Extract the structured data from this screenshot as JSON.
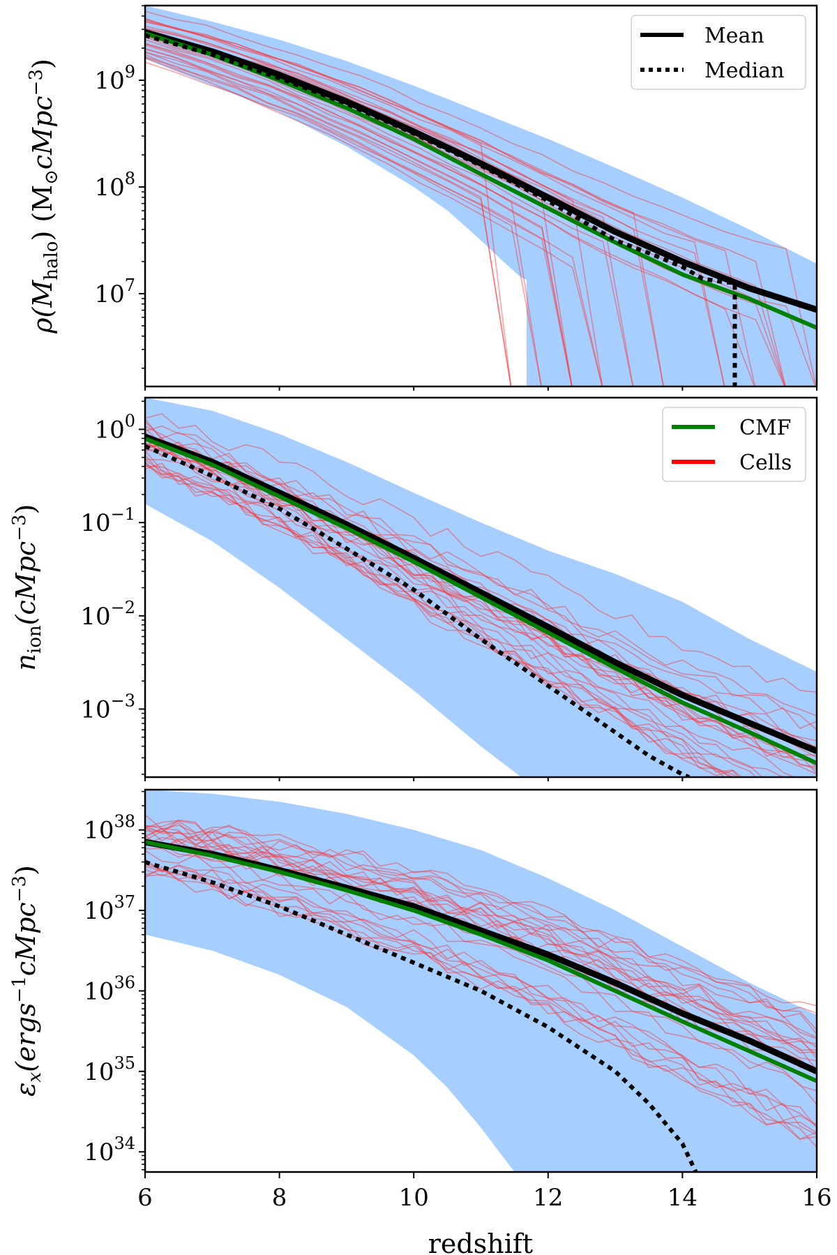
{
  "chart_data": [
    {
      "type": "line",
      "panel": "top",
      "ylabel_main": "ρ(M",
      "ylabel_sub": "halo",
      "ylabel_tail": ") (M",
      "ylabel_sun": "⊙",
      "ylabel_units": "cMpc",
      "ylabel_exp": "−3",
      "ylabel_close": ")",
      "yscale": "log",
      "xlim": [
        6,
        16
      ],
      "ylim_log10": [
        6.13,
        9.7
      ],
      "yticks": [
        {
          "base": "10",
          "exp": "9",
          "log": 9
        },
        {
          "base": "10",
          "exp": "8",
          "log": 8
        },
        {
          "base": "10",
          "exp": "7",
          "log": 7
        }
      ],
      "legend": {
        "position": "top-right",
        "entries": [
          {
            "label": "Mean",
            "color": "#000000",
            "style": "solid"
          },
          {
            "label": "Median",
            "color": "#000000",
            "style": "dotted"
          }
        ]
      },
      "band_color": "#a6ceff",
      "band_lower": {
        "x": [
          6,
          7,
          8,
          9,
          10,
          10.5,
          11,
          11.3,
          11.6,
          11.68
        ],
        "y": [
          9.2,
          8.95,
          8.7,
          8.38,
          8.0,
          7.78,
          7.5,
          7.32,
          7.15,
          7.13
        ]
      },
      "band_upper": {
        "x": [
          6,
          7,
          8,
          9,
          10,
          11,
          12,
          13,
          14,
          15,
          16
        ],
        "y": [
          9.7,
          9.55,
          9.38,
          9.18,
          8.95,
          8.7,
          8.45,
          8.18,
          7.9,
          7.6,
          7.28
        ]
      },
      "band_cut_x": 11.68,
      "series": [
        {
          "name": "Mean",
          "color": "#000000",
          "style": "solid",
          "x": [
            6,
            7,
            8,
            9,
            10,
            11,
            12,
            13,
            14,
            15,
            16
          ],
          "y": [
            9.45,
            9.27,
            9.05,
            8.8,
            8.52,
            8.22,
            7.9,
            7.58,
            7.3,
            7.05,
            6.85
          ]
        },
        {
          "name": "Median",
          "color": "#000000",
          "style": "dotted",
          "x": [
            6,
            7,
            8,
            9,
            10,
            11,
            12,
            13,
            13.5,
            14,
            14.3,
            14.6,
            14.78,
            14.78
          ],
          "y": [
            9.42,
            9.24,
            9.02,
            8.78,
            8.5,
            8.2,
            7.87,
            7.5,
            7.38,
            7.25,
            7.14,
            7.11,
            7.1,
            6.13
          ]
        },
        {
          "name": "CMF",
          "color": "#008000",
          "style": "solid",
          "x": [
            6,
            7,
            8,
            9,
            10,
            11,
            12,
            13,
            14,
            15,
            16
          ],
          "y": [
            9.44,
            9.24,
            9.0,
            8.74,
            8.45,
            8.12,
            7.8,
            7.48,
            7.18,
            6.95,
            6.68
          ]
        }
      ]
    },
    {
      "type": "line",
      "panel": "middle",
      "ylabel_main": "n",
      "ylabel_sub": "ion",
      "ylabel_units": "(cMpc",
      "ylabel_exp": "−3",
      "ylabel_close": ")",
      "yscale": "log",
      "xlim": [
        6,
        16
      ],
      "ylim_log10": [
        -3.73,
        0.34
      ],
      "yticks": [
        {
          "base": "10",
          "exp": "0",
          "log": 0
        },
        {
          "base": "10",
          "exp": "−1",
          "log": -1
        },
        {
          "base": "10",
          "exp": "−2",
          "log": -2
        },
        {
          "base": "10",
          "exp": "−3",
          "log": -3
        }
      ],
      "legend": {
        "position": "top-right",
        "entries": [
          {
            "label": "CMF",
            "color": "#008000",
            "style": "solid"
          },
          {
            "label": "Cells",
            "color": "#ff0000",
            "style": "solid"
          }
        ]
      },
      "band_color": "#a6ceff",
      "band_lower": {
        "x": [
          6,
          7,
          8,
          9,
          10,
          11,
          11.6
        ],
        "y": [
          -0.8,
          -1.2,
          -1.7,
          -2.25,
          -2.8,
          -3.4,
          -3.73
        ]
      },
      "band_upper": {
        "x": [
          6,
          7,
          8,
          9,
          10,
          11,
          12,
          13,
          14,
          15,
          16
        ],
        "y": [
          0.34,
          0.2,
          -0.05,
          -0.35,
          -0.68,
          -1.0,
          -1.3,
          -1.55,
          -1.85,
          -2.25,
          -2.6
        ]
      },
      "series": [
        {
          "name": "Mean",
          "color": "#000000",
          "style": "solid",
          "x": [
            6,
            7,
            8,
            9,
            10,
            11,
            12,
            13,
            14,
            15,
            16
          ],
          "y": [
            -0.08,
            -0.35,
            -0.68,
            -1.02,
            -1.38,
            -1.75,
            -2.12,
            -2.5,
            -2.85,
            -3.15,
            -3.45
          ]
        },
        {
          "name": "Median",
          "color": "#000000",
          "style": "dotted",
          "x": [
            6,
            7,
            8,
            9,
            10,
            11,
            12,
            13,
            13.5,
            14,
            14.1
          ],
          "y": [
            -0.18,
            -0.5,
            -0.85,
            -1.28,
            -1.72,
            -2.25,
            -2.75,
            -3.25,
            -3.5,
            -3.7,
            -3.73
          ]
        },
        {
          "name": "CMF",
          "color": "#008000",
          "style": "solid",
          "x": [
            6,
            7,
            8,
            9,
            10,
            11,
            12,
            13,
            14,
            15,
            16
          ],
          "y": [
            -0.1,
            -0.38,
            -0.72,
            -1.06,
            -1.42,
            -1.8,
            -2.18,
            -2.56,
            -2.93,
            -3.25,
            -3.58
          ]
        }
      ]
    },
    {
      "type": "line",
      "panel": "bottom",
      "ylabel_main": "ε",
      "ylabel_sub": "x",
      "ylabel_units": "(ergs",
      "ylabel_exp": "−1",
      "ylabel_mid": "cMpc",
      "ylabel_exp2": "−3",
      "ylabel_close": ")",
      "yscale": "log",
      "xlim": [
        6,
        16
      ],
      "xlabel": "redshift",
      "xticks": [
        6,
        8,
        10,
        12,
        14,
        16
      ],
      "ylim_log10": [
        33.75,
        38.5
      ],
      "yticks": [
        {
          "base": "10",
          "exp": "38",
          "log": 38
        },
        {
          "base": "10",
          "exp": "37",
          "log": 37
        },
        {
          "base": "10",
          "exp": "36",
          "log": 36
        },
        {
          "base": "10",
          "exp": "35",
          "log": 35
        },
        {
          "base": "10",
          "exp": "34",
          "log": 34
        }
      ],
      "band_color": "#a6ceff",
      "band_lower": {
        "x": [
          6,
          7,
          8,
          9,
          10,
          10.5,
          11,
          11.5
        ],
        "y": [
          36.7,
          36.5,
          36.2,
          35.8,
          35.2,
          34.8,
          34.3,
          33.75
        ]
      },
      "band_upper": {
        "x": [
          6,
          7,
          8,
          9,
          10,
          11,
          12,
          13,
          14,
          15,
          16
        ],
        "y": [
          38.5,
          38.45,
          38.35,
          38.2,
          38.0,
          37.75,
          37.4,
          37.0,
          36.55,
          36.1,
          35.7
        ]
      },
      "series": [
        {
          "name": "Mean",
          "color": "#000000",
          "style": "solid",
          "x": [
            6,
            7,
            8,
            9,
            10,
            11,
            12,
            13,
            14,
            15,
            16
          ],
          "y": [
            37.85,
            37.7,
            37.5,
            37.28,
            37.05,
            36.75,
            36.45,
            36.1,
            35.72,
            35.38,
            35.0
          ]
        },
        {
          "name": "Median",
          "color": "#000000",
          "style": "dotted",
          "x": [
            6,
            7,
            8,
            9,
            10,
            11,
            12,
            13,
            13.5,
            14,
            14.2
          ],
          "y": [
            37.6,
            37.35,
            37.05,
            36.7,
            36.35,
            36.0,
            35.55,
            35.0,
            34.6,
            34.1,
            33.75
          ]
        },
        {
          "name": "CMF",
          "color": "#008000",
          "style": "solid",
          "x": [
            6,
            7,
            8,
            9,
            10,
            11,
            12,
            13,
            14,
            15,
            16
          ],
          "y": [
            37.85,
            37.68,
            37.48,
            37.25,
            37.0,
            36.7,
            36.38,
            36.0,
            35.62,
            35.25,
            34.88
          ]
        }
      ]
    }
  ]
}
